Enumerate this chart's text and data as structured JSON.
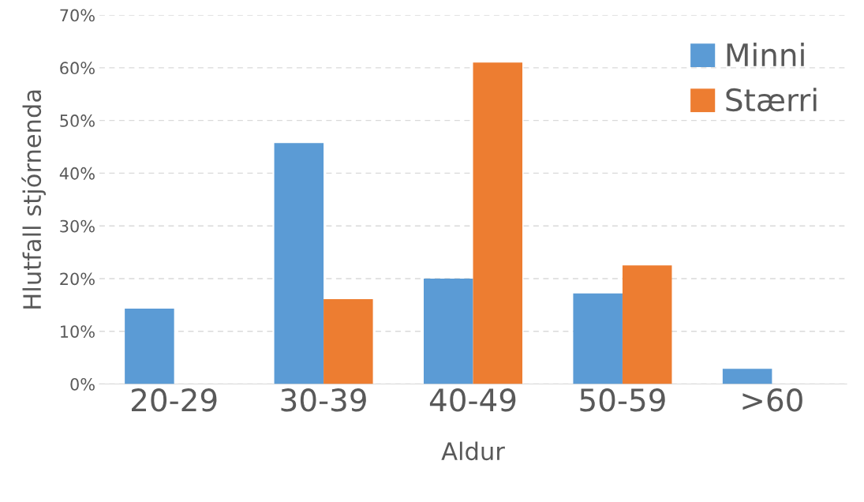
{
  "chart_data": {
    "type": "bar",
    "xlabel": "Aldur",
    "ylabel": "Hlutfall stjórnenda",
    "categories": [
      "20-29",
      "30-39",
      "40-49",
      "50-59",
      ">60"
    ],
    "series": [
      {
        "name": "Minni",
        "color": "#5b9bd5",
        "values": [
          14.3,
          45.7,
          20.0,
          17.2,
          2.9
        ]
      },
      {
        "name": "Stærri",
        "color": "#ed7d31",
        "values": [
          null,
          16.1,
          61.0,
          22.5,
          null
        ]
      }
    ],
    "ylim": [
      0,
      70
    ],
    "yticks": [
      {
        "value": 0,
        "label": "0%"
      },
      {
        "value": 10,
        "label": "10%"
      },
      {
        "value": 20,
        "label": "20%"
      },
      {
        "value": 30,
        "label": "30%"
      },
      {
        "value": 40,
        "label": "40%"
      },
      {
        "value": 50,
        "label": "50%"
      },
      {
        "value": 60,
        "label": "60%"
      },
      {
        "value": 70,
        "label": "70%"
      }
    ],
    "grid": "y",
    "legend": "top right"
  }
}
